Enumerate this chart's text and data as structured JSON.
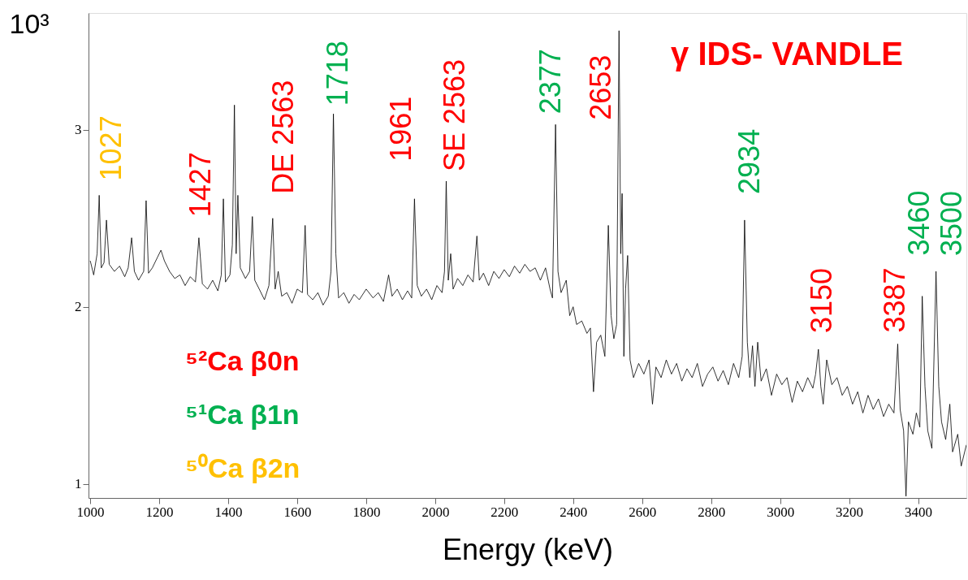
{
  "chart_data": {
    "type": "line",
    "xlabel": "Energy (keV)",
    "ylabel": "10³",
    "xlim": [
      995,
      3540
    ],
    "xticks": [
      1000,
      1200,
      1400,
      1600,
      1800,
      2000,
      2200,
      2400,
      2600,
      2800,
      3000,
      3200,
      3400
    ],
    "ylim": [
      0.92,
      3.66
    ],
    "yticks": [
      1,
      2,
      3
    ],
    "grid": false,
    "marker": "none",
    "line_style": "solid",
    "series": [
      {
        "color": "#000000",
        "x": [
          1000,
          1010,
          1020,
          1026,
          1032,
          1040,
          1047,
          1055,
          1070,
          1085,
          1100,
          1110,
          1120,
          1128,
          1140,
          1155,
          1162,
          1169,
          1180,
          1195,
          1205,
          1215,
          1230,
          1245,
          1260,
          1275,
          1290,
          1305,
          1315,
          1325,
          1340,
          1355,
          1370,
          1380,
          1386,
          1392,
          1405,
          1412,
          1418,
          1423,
          1428,
          1435,
          1450,
          1462,
          1470,
          1477,
          1490,
          1505,
          1518,
          1529,
          1536,
          1545,
          1555,
          1570,
          1585,
          1600,
          1615,
          1623,
          1630,
          1645,
          1660,
          1675,
          1690,
          1698,
          1705,
          1712,
          1720,
          1735,
          1750,
          1765,
          1780,
          1800,
          1820,
          1835,
          1850,
          1865,
          1875,
          1890,
          1905,
          1920,
          1932,
          1940,
          1948,
          1960,
          1975,
          1990,
          2005,
          2020,
          2027,
          2032,
          2038,
          2045,
          2052,
          2065,
          2080,
          2095,
          2110,
          2121,
          2128,
          2140,
          2155,
          2170,
          2185,
          2200,
          2215,
          2230,
          2245,
          2260,
          2275,
          2290,
          2305,
          2320,
          2333,
          2340,
          2349,
          2356,
          2365,
          2380,
          2390,
          2400,
          2410,
          2425,
          2440,
          2450,
          2459,
          2468,
          2480,
          2492,
          2502,
          2510,
          2518,
          2526,
          2533,
          2538,
          2542,
          2547,
          2552,
          2558,
          2565,
          2575,
          2590,
          2605,
          2620,
          2630,
          2640,
          2655,
          2670,
          2685,
          2700,
          2715,
          2730,
          2745,
          2760,
          2775,
          2790,
          2805,
          2820,
          2835,
          2850,
          2865,
          2880,
          2890,
          2897,
          2905,
          2912,
          2920,
          2927,
          2935,
          2945,
          2960,
          2975,
          2990,
          3005,
          3020,
          3035,
          3050,
          3065,
          3080,
          3095,
          3103,
          3111,
          3118,
          3125,
          3135,
          3150,
          3165,
          3180,
          3195,
          3210,
          3225,
          3240,
          3255,
          3270,
          3285,
          3300,
          3315,
          3330,
          3341,
          3348,
          3358,
          3365,
          3372,
          3385,
          3395,
          3405,
          3412,
          3420,
          3428,
          3440,
          3452,
          3460,
          3468,
          3480,
          3492,
          3500,
          3515,
          3525,
          3540
        ],
        "values": [
          2.26,
          2.18,
          2.3,
          2.63,
          2.22,
          2.25,
          2.49,
          2.24,
          2.2,
          2.23,
          2.17,
          2.22,
          2.39,
          2.2,
          2.15,
          2.2,
          2.6,
          2.19,
          2.22,
          2.28,
          2.32,
          2.26,
          2.2,
          2.16,
          2.18,
          2.12,
          2.17,
          2.14,
          2.39,
          2.13,
          2.1,
          2.15,
          2.09,
          2.18,
          2.61,
          2.14,
          2.18,
          2.35,
          3.14,
          2.3,
          2.63,
          2.22,
          2.16,
          2.2,
          2.51,
          2.15,
          2.1,
          2.04,
          2.12,
          2.5,
          2.1,
          2.2,
          2.06,
          2.08,
          2.02,
          2.1,
          2.08,
          2.46,
          2.07,
          2.04,
          2.08,
          2.01,
          2.06,
          2.2,
          3.09,
          2.3,
          2.05,
          2.08,
          2.02,
          2.07,
          2.04,
          2.1,
          2.05,
          2.08,
          2.03,
          2.18,
          2.06,
          2.1,
          2.04,
          2.09,
          2.05,
          2.61,
          2.12,
          2.06,
          2.1,
          2.04,
          2.12,
          2.08,
          2.2,
          2.71,
          2.15,
          2.3,
          2.1,
          2.16,
          2.12,
          2.18,
          2.14,
          2.4,
          2.15,
          2.19,
          2.12,
          2.2,
          2.16,
          2.21,
          2.17,
          2.23,
          2.19,
          2.24,
          2.2,
          2.22,
          2.15,
          2.22,
          2.1,
          2.05,
          3.03,
          2.2,
          2.08,
          2.15,
          1.95,
          2.0,
          1.9,
          1.92,
          1.85,
          1.88,
          1.52,
          1.8,
          1.84,
          1.72,
          2.46,
          1.95,
          1.82,
          1.9,
          3.56,
          2.3,
          2.64,
          1.72,
          2.1,
          2.29,
          1.7,
          1.6,
          1.68,
          1.62,
          1.7,
          1.45,
          1.66,
          1.6,
          1.7,
          1.62,
          1.68,
          1.58,
          1.65,
          1.6,
          1.68,
          1.55,
          1.62,
          1.66,
          1.58,
          1.64,
          1.56,
          1.68,
          1.6,
          1.72,
          2.49,
          1.8,
          1.6,
          1.78,
          1.55,
          1.8,
          1.58,
          1.65,
          1.5,
          1.62,
          1.56,
          1.6,
          1.46,
          1.58,
          1.52,
          1.6,
          1.54,
          1.62,
          1.76,
          1.55,
          1.45,
          1.7,
          1.56,
          1.6,
          1.5,
          1.55,
          1.45,
          1.52,
          1.4,
          1.5,
          1.42,
          1.48,
          1.38,
          1.45,
          1.4,
          1.79,
          1.42,
          1.3,
          0.93,
          1.35,
          1.28,
          1.4,
          1.32,
          2.06,
          1.55,
          1.3,
          1.2,
          2.2,
          1.55,
          1.35,
          1.25,
          1.45,
          1.18,
          1.28,
          1.1,
          1.22
        ]
      }
    ],
    "annotations": [
      {
        "text": "1027",
        "x": 1026,
        "y": 2.63
      },
      {
        "text": "1427",
        "x": 1418,
        "y": 3.14
      },
      {
        "text": "DE 2563",
        "x": 1529,
        "y": 2.5
      },
      {
        "text": "1718",
        "x": 1705,
        "y": 3.09
      },
      {
        "text": "1961",
        "x": 1940,
        "y": 2.61
      },
      {
        "text": "SE 2563",
        "x": 2032,
        "y": 2.71
      },
      {
        "text": "2377",
        "x": 2349,
        "y": 3.03
      },
      {
        "text": "2653",
        "x": 2533,
        "y": 3.56
      },
      {
        "text": "2934",
        "x": 2897,
        "y": 2.49
      },
      {
        "text": "3150",
        "x": 3111,
        "y": 1.76
      },
      {
        "text": "3387",
        "x": 3341,
        "y": 1.79
      },
      {
        "text": "3460",
        "x": 3412,
        "y": 2.06
      },
      {
        "text": "3500",
        "x": 3452,
        "y": 2.2
      },
      "γ IDS- VANDLE",
      "⁵²Ca β0n",
      "⁵¹Ca β1n",
      "⁵⁰Ca β2n"
    ]
  }
}
